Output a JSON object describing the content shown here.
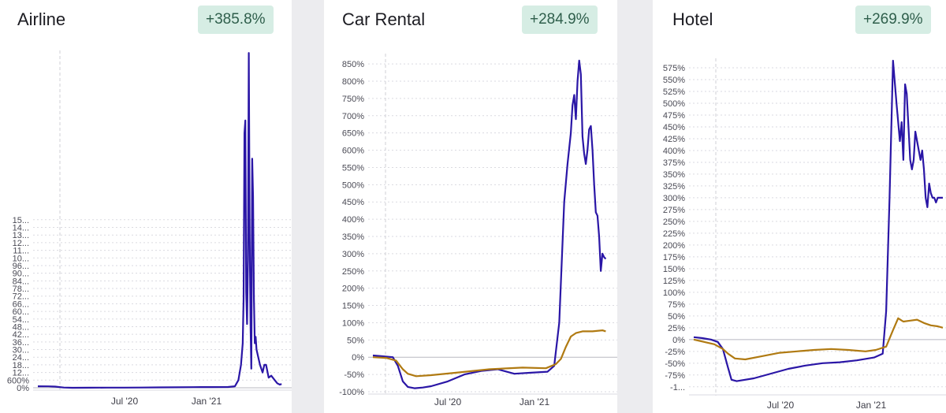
{
  "chart_data": [
    {
      "type": "line",
      "title": "Airline",
      "badge": "+385.8%",
      "x_tick_labels": [
        "Jul '20",
        "Jan '21"
      ],
      "y_tick_labels": [
        "0%",
        "600%",
        "12...",
        "18...",
        "24...",
        "30...",
        "36...",
        "42...",
        "48...",
        "54...",
        "60...",
        "66...",
        "72...",
        "78...",
        "84...",
        "90...",
        "96...",
        "10...",
        "11...",
        "12...",
        "13...",
        "14...",
        "15..."
      ],
      "y_step": 600,
      "ylim": [
        0,
        26500
      ],
      "xlim": [
        0,
        14.5
      ],
      "xlabel": "",
      "ylabel": "",
      "grid": true,
      "series": [
        {
          "color": "#2a16a6",
          "x": [
            0,
            0.6,
            1.0,
            1.5,
            2.0,
            3,
            4,
            5,
            6,
            7,
            8,
            9,
            10,
            11,
            11.4,
            11.6,
            11.75,
            11.85,
            11.9,
            11.95,
            12.0,
            12.05,
            12.1,
            12.15,
            12.2,
            12.25,
            12.3,
            12.35,
            12.4,
            12.45,
            12.5,
            12.55,
            12.6,
            12.65,
            12.75,
            12.85,
            13.0,
            13.1,
            13.2,
            13.35,
            13.5,
            13.7,
            13.85,
            14.0,
            14.1
          ],
          "y": [
            120,
            110,
            90,
            20,
            0,
            5,
            10,
            15,
            20,
            30,
            40,
            50,
            55,
            60,
            120,
            600,
            1800,
            3500,
            7000,
            20000,
            21000,
            7500,
            5000,
            10000,
            26300,
            12000,
            5000,
            1500,
            18000,
            15000,
            7000,
            3500,
            4000,
            3000,
            2400,
            1800,
            1200,
            1800,
            1800,
            800,
            950,
            600,
            350,
            250,
            300
          ]
        }
      ]
    },
    {
      "type": "line",
      "title": "Car Rental",
      "badge": "+284.9%",
      "x_tick_labels": [
        "Jul '20",
        "Jan '21"
      ],
      "y_tick_labels": [
        "-100%",
        "-50%",
        "0%",
        "50%",
        "100%",
        "150%",
        "200%",
        "250%",
        "300%",
        "350%",
        "400%",
        "450%",
        "500%",
        "550%",
        "600%",
        "650%",
        "700%",
        "750%",
        "800%",
        "850%"
      ],
      "y_step": 50,
      "ylim": [
        -100,
        880
      ],
      "xlim": [
        0,
        14.5
      ],
      "xlabel": "",
      "ylabel": "",
      "grid": true,
      "series": [
        {
          "color": "#2a16a6",
          "x": [
            0,
            0.5,
            1.2,
            1.5,
            1.8,
            2.1,
            2.5,
            3.0,
            3.5,
            4.5,
            5.5,
            6.5,
            7.5,
            8.5,
            9.5,
            10.5,
            10.9,
            11.2,
            11.5,
            11.7,
            11.9,
            12.0,
            12.1,
            12.2,
            12.3,
            12.4,
            12.5,
            12.6,
            12.7,
            12.8,
            12.9,
            13.0,
            13.1,
            13.2,
            13.3,
            13.4,
            13.5,
            13.6,
            13.7,
            13.8,
            13.9,
            14.0
          ],
          "y": [
            5,
            3,
            0,
            -25,
            -70,
            -86,
            -90,
            -88,
            -84,
            -70,
            -50,
            -40,
            -35,
            -48,
            -45,
            -42,
            -25,
            100,
            450,
            560,
            650,
            730,
            760,
            690,
            800,
            860,
            820,
            640,
            590,
            560,
            600,
            660,
            670,
            600,
            500,
            420,
            410,
            350,
            250,
            300,
            290,
            285
          ]
        },
        {
          "color": "#b07a12",
          "x": [
            0,
            0.8,
            1.4,
            1.8,
            2.1,
            2.6,
            3.5,
            5,
            7,
            9,
            10.4,
            11.0,
            11.3,
            11.6,
            11.9,
            12.2,
            12.6,
            13.2,
            13.8,
            14.0
          ],
          "y": [
            0,
            -2,
            -10,
            -35,
            -48,
            -55,
            -52,
            -45,
            -35,
            -30,
            -32,
            -20,
            -5,
            30,
            60,
            70,
            75,
            75,
            78,
            75
          ]
        }
      ]
    },
    {
      "type": "line",
      "title": "Hotel",
      "badge": "+269.9%",
      "x_tick_labels": [
        "Jul '20",
        "Jan '21"
      ],
      "y_tick_labels": [
        "-1...",
        "-75%",
        "-50%",
        "-25%",
        "0%",
        "25%",
        "50%",
        "75%",
        "100%",
        "125%",
        "150%",
        "175%",
        "200%",
        "225%",
        "250%",
        "275%",
        "300%",
        "325%",
        "350%",
        "375%",
        "400%",
        "425%",
        "450%",
        "475%",
        "500%",
        "525%",
        "550%",
        "575%"
      ],
      "y_step": 25,
      "ylim": [
        -112,
        595
      ],
      "xlim": [
        0,
        14.5
      ],
      "xlabel": "",
      "ylabel": "",
      "grid": true,
      "series": [
        {
          "color": "#2a16a6",
          "x": [
            0,
            0.5,
            1.0,
            1.4,
            1.7,
            2.0,
            2.2,
            2.5,
            3.5,
            4.5,
            5.5,
            6.5,
            7.5,
            8.5,
            9.5,
            10.5,
            11.0,
            11.2,
            11.4,
            11.6,
            11.8,
            12.0,
            12.1,
            12.2,
            12.3,
            12.4,
            12.5,
            12.6,
            12.7,
            12.8,
            12.9,
            13.0,
            13.1,
            13.2,
            13.3,
            13.4,
            13.5,
            13.6,
            13.7,
            13.8,
            13.9,
            14.0,
            14.1,
            14.2,
            14.3,
            14.4,
            14.5
          ],
          "y": [
            5,
            3,
            0,
            -5,
            -20,
            -60,
            -85,
            -88,
            -82,
            -72,
            -62,
            -55,
            -50,
            -48,
            -44,
            -38,
            -30,
            60,
            300,
            590,
            500,
            420,
            460,
            380,
            540,
            520,
            450,
            380,
            360,
            380,
            440,
            420,
            400,
            380,
            400,
            360,
            300,
            280,
            330,
            310,
            300,
            300,
            290,
            300,
            300,
            300,
            300
          ]
        },
        {
          "color": "#b07a12",
          "x": [
            0,
            0.6,
            1.2,
            1.7,
            2.0,
            2.4,
            3.0,
            4.0,
            5.0,
            6.0,
            7.0,
            8.0,
            9.0,
            10.0,
            10.6,
            11.2,
            11.6,
            11.9,
            12.2,
            12.6,
            13.0,
            13.4,
            13.8,
            14.2,
            14.5
          ],
          "y": [
            0,
            -5,
            -10,
            -20,
            -30,
            -40,
            -42,
            -35,
            -28,
            -25,
            -22,
            -20,
            -22,
            -25,
            -22,
            -15,
            20,
            45,
            38,
            40,
            42,
            35,
            30,
            28,
            25
          ]
        }
      ]
    }
  ]
}
